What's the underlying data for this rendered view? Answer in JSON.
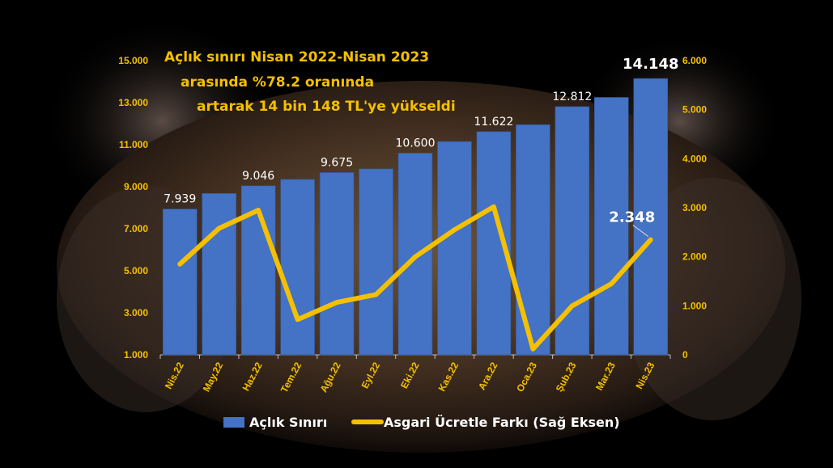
{
  "chart_data": {
    "type": "bar",
    "title_lines": [
      "Açlık sınırı Nisan 2022-Nisan 2023",
      "arasında %78.2 oranında",
      "artarak 14 bin 148 TL'ye yükseldi"
    ],
    "categories": [
      "Nis.22",
      "May.22",
      "Haz.22",
      "Tem.22",
      "Ağu.22",
      "Eyl.22",
      "Eki.22",
      "Kas.22",
      "Ara.22",
      "Oca.23",
      "Şub.23",
      "Mar.23",
      "Nis.23"
    ],
    "series": [
      {
        "name": "Açlık Sınırı",
        "type": "bar",
        "axis": "left",
        "color": "#4472c4",
        "values": [
          7939,
          8680,
          9046,
          9350,
          9675,
          9850,
          10600,
          11150,
          11622,
          11950,
          12812,
          13250,
          14148
        ]
      },
      {
        "name": "Asgari Ücretle Farkı (Sağ Eksen)",
        "type": "line",
        "axis": "right",
        "color": "#f4c000",
        "values": [
          1850,
          2580,
          2950,
          720,
          1070,
          1230,
          2000,
          2550,
          3020,
          120,
          1000,
          1450,
          2348
        ]
      }
    ],
    "data_labels": [
      {
        "index": 0,
        "text": "7.939"
      },
      {
        "index": 2,
        "text": "9.046"
      },
      {
        "index": 4,
        "text": "9.675"
      },
      {
        "index": 6,
        "text": "10.600"
      },
      {
        "index": 8,
        "text": "11.622"
      },
      {
        "index": 10,
        "text": "12.812"
      },
      {
        "index": 12,
        "text": "14.148",
        "emphasis": true
      }
    ],
    "line_label": {
      "index": 12,
      "text": "2.348"
    },
    "y_left": {
      "min": 1000,
      "max": 15000,
      "ticks": [
        "1.000",
        "3.000",
        "5.000",
        "7.000",
        "9.000",
        "11.000",
        "13.000",
        "15.000"
      ]
    },
    "y_right": {
      "min": 0,
      "max": 6000,
      "ticks": [
        "0",
        "1.000",
        "2.000",
        "3.000",
        "4.000",
        "5.000",
        "6.000"
      ]
    },
    "legend": {
      "placement": "bottom"
    },
    "grid": false
  }
}
